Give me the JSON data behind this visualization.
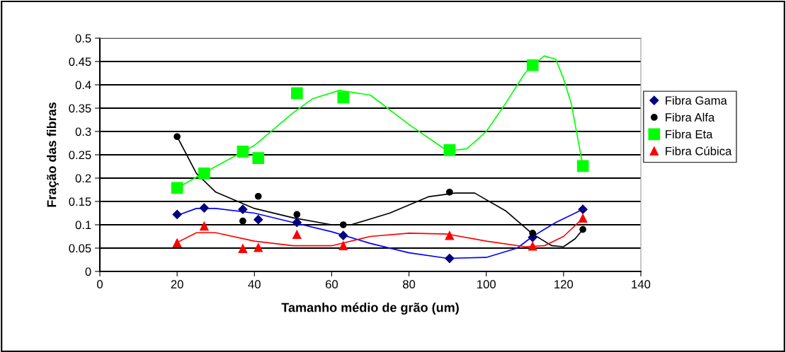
{
  "chart_data": {
    "type": "scatter",
    "xlabel": "Tamanho médio de grão (um)",
    "ylabel": "Fração das fibras",
    "xlim": [
      0,
      140
    ],
    "xticks": [
      0,
      20,
      40,
      60,
      80,
      100,
      120,
      140
    ],
    "ylim": [
      0,
      0.5
    ],
    "yticks": [
      0,
      0.05,
      0.1,
      0.15,
      0.2,
      0.25,
      0.3,
      0.35,
      0.4,
      0.45,
      0.5
    ],
    "grid": "y",
    "legend": "right",
    "series": [
      {
        "type": "line",
        "color": "#0000ff",
        "marker": "none",
        "x": [
          20,
          25,
          30,
          40,
          50,
          60,
          70,
          80,
          90,
          100,
          108,
          112,
          118,
          125
        ],
        "values": [
          0.12,
          0.135,
          0.135,
          0.125,
          0.105,
          0.085,
          0.06,
          0.04,
          0.028,
          0.03,
          0.05,
          0.075,
          0.105,
          0.133
        ]
      },
      {
        "type": "line",
        "color": "#000000",
        "marker": "none",
        "x": [
          20,
          25,
          30,
          40,
          50,
          60,
          65,
          75,
          85,
          92,
          97,
          105,
          112,
          117,
          120,
          123,
          125
        ],
        "values": [
          0.289,
          0.21,
          0.17,
          0.135,
          0.115,
          0.1,
          0.1,
          0.125,
          0.16,
          0.168,
          0.168,
          0.13,
          0.08,
          0.055,
          0.053,
          0.07,
          0.09
        ]
      },
      {
        "type": "line",
        "color": "#00ff00",
        "marker": "none",
        "x": [
          20,
          30,
          40,
          50,
          55,
          62,
          70,
          80,
          90,
          95,
          100,
          105,
          110,
          115,
          118,
          120,
          122,
          125
        ],
        "values": [
          0.179,
          0.225,
          0.27,
          0.34,
          0.37,
          0.388,
          0.378,
          0.315,
          0.258,
          0.263,
          0.3,
          0.36,
          0.425,
          0.462,
          0.455,
          0.413,
          0.36,
          0.226
        ]
      },
      {
        "type": "line",
        "color": "#ff0000",
        "marker": "none",
        "x": [
          20,
          25,
          30,
          40,
          50,
          60,
          70,
          80,
          90,
          100,
          110,
          115,
          120,
          125
        ],
        "values": [
          0.062,
          0.083,
          0.083,
          0.065,
          0.055,
          0.055,
          0.075,
          0.082,
          0.08,
          0.065,
          0.053,
          0.055,
          0.075,
          0.114
        ]
      },
      {
        "name": "Fibra Gama",
        "color": "#000080",
        "marker": "diamond",
        "x": [
          20,
          27,
          37,
          41,
          51,
          63,
          90.5,
          112,
          125
        ],
        "values": [
          0.122,
          0.136,
          0.133,
          0.111,
          0.105,
          0.077,
          0.028,
          0.073,
          0.133
        ]
      },
      {
        "name": "Fibra Alfa",
        "color": "#000000",
        "marker": "circle",
        "x": [
          20,
          37,
          41,
          51,
          63,
          90.5,
          112,
          125
        ],
        "values": [
          0.289,
          0.108,
          0.161,
          0.122,
          0.1,
          0.17,
          0.082,
          0.09
        ]
      },
      {
        "name": "Fibra Eta",
        "color": "#00ff00",
        "marker": "square",
        "x": [
          20,
          27,
          37,
          41,
          51,
          63,
          90.5,
          112,
          125
        ],
        "values": [
          0.179,
          0.21,
          0.257,
          0.243,
          0.382,
          0.373,
          0.26,
          0.442,
          0.226
        ]
      },
      {
        "name": "Fibra Cúbica",
        "color": "#ff0000",
        "marker": "triangle",
        "x": [
          20,
          27,
          37,
          41,
          51,
          63,
          90.5,
          112,
          125
        ],
        "values": [
          0.061,
          0.097,
          0.049,
          0.051,
          0.079,
          0.055,
          0.077,
          0.054,
          0.114
        ]
      }
    ]
  }
}
